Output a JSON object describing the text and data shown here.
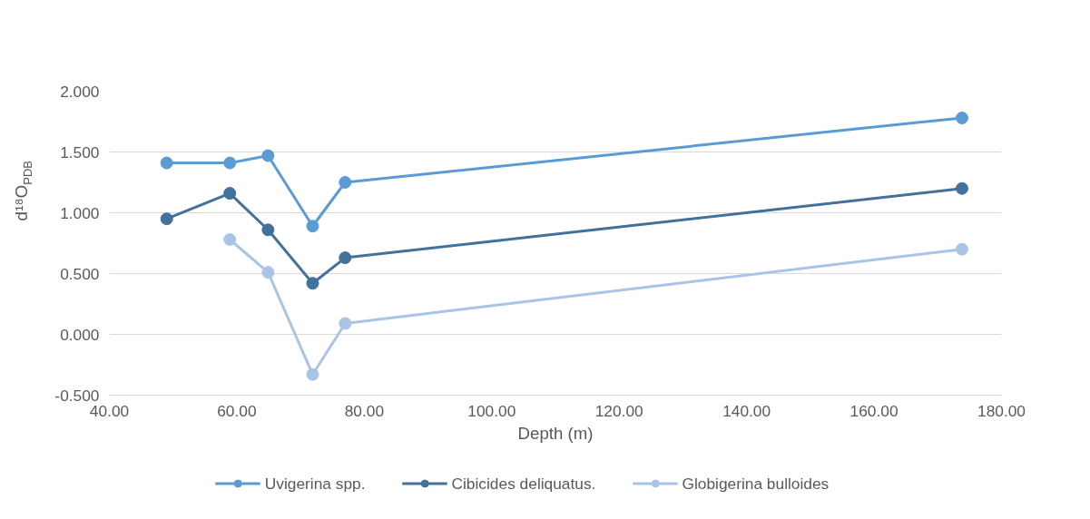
{
  "chart_data": {
    "type": "line",
    "xlabel": "Depth (m)",
    "ylabel": "d¹⁸O$_{PDB}$",
    "series": [
      {
        "name": "Uvigerina spp.",
        "color": "#5b9bd5",
        "x": [
          49.0,
          58.9,
          64.9,
          71.9,
          77.0,
          173.8
        ],
        "values": [
          1.41,
          1.41,
          1.47,
          0.89,
          1.25,
          1.78
        ]
      },
      {
        "name": "Cibicides deliquatus.",
        "color": "#41719c",
        "x": [
          49.0,
          58.9,
          64.9,
          71.9,
          77.0,
          173.8
        ],
        "values": [
          0.95,
          1.16,
          0.86,
          0.42,
          0.63,
          1.2
        ]
      },
      {
        "name": "Globigerina bulloides",
        "color": "#a9c4e6",
        "x": [
          58.9,
          64.9,
          71.9,
          77.0,
          173.8
        ],
        "values": [
          0.78,
          0.51,
          -0.33,
          0.09,
          0.7
        ]
      }
    ],
    "xlim": [
      40,
      180
    ],
    "xticks": [
      {
        "value": 40,
        "label": "40.00"
      },
      {
        "value": 60,
        "label": "60.00"
      },
      {
        "value": 80,
        "label": "80.00"
      },
      {
        "value": 100,
        "label": "100.00"
      },
      {
        "value": 120,
        "label": "120.00"
      },
      {
        "value": 140,
        "label": "140.00"
      },
      {
        "value": 160,
        "label": "160.00"
      },
      {
        "value": 180,
        "label": "180.00"
      }
    ],
    "ylim": [
      -0.5,
      2.0
    ],
    "yticks": [
      {
        "value": -0.5,
        "label": "-0.500"
      },
      {
        "value": 0,
        "label": "0.000"
      },
      {
        "value": 0.5,
        "label": "0.500"
      },
      {
        "value": 1.0,
        "label": "1.000"
      },
      {
        "value": 1.5,
        "label": "1.500"
      },
      {
        "value": 2.0,
        "label": "2.000"
      }
    ],
    "grid": "y",
    "legend": "bottom",
    "marker": "circle",
    "line_style": "solid"
  }
}
